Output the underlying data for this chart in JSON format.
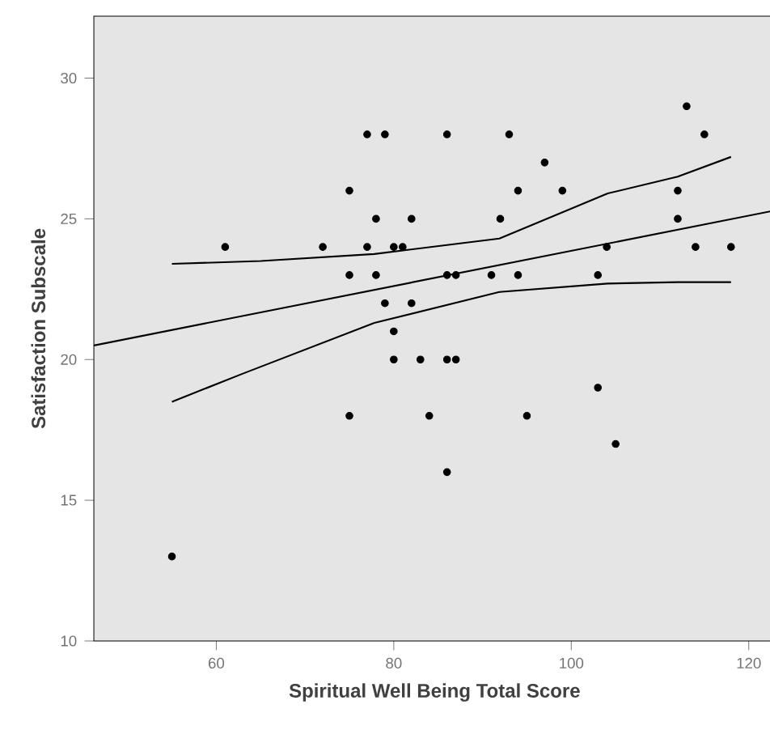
{
  "chart_data": {
    "type": "scatter",
    "xlabel": "Spiritual Well Being Total Score",
    "ylabel": "Satisfaction Subscale",
    "xlim": [
      46.2,
      123
    ],
    "ylim": [
      10,
      32.2
    ],
    "xticks": [
      60,
      80,
      100,
      120
    ],
    "yticks": [
      10,
      15,
      20,
      25,
      30
    ],
    "series": [
      {
        "marker": "circle",
        "color": "#000000",
        "x": [
          55,
          61,
          72,
          75,
          75,
          75,
          77,
          77,
          78,
          78,
          79,
          79,
          80,
          80,
          80,
          81,
          82,
          82,
          83,
          84,
          86,
          86,
          86,
          86,
          87,
          87,
          91,
          92,
          93,
          94,
          94,
          95,
          97,
          99,
          103,
          103,
          104,
          105,
          112,
          112,
          113,
          114,
          115,
          118
        ],
        "values": [
          13,
          24,
          24,
          26,
          23,
          18,
          28,
          24,
          25,
          23,
          28,
          22,
          24,
          21,
          20,
          24,
          25,
          22,
          20,
          18,
          28,
          23,
          20,
          16,
          23,
          20,
          23,
          25,
          28,
          26,
          23,
          18,
          27,
          26,
          23,
          19,
          24,
          17,
          26,
          25,
          29,
          24,
          28,
          24
        ]
      },
      {
        "type": "line",
        "marker": "none",
        "color": "#000000",
        "x": [
          46.2,
          123
        ],
        "values": [
          20.5,
          25.3
        ]
      },
      {
        "type": "line",
        "marker": "none",
        "color": "#000000",
        "x": [
          55,
          65,
          77.8,
          91.9,
          104.1,
          112,
          118
        ],
        "values": [
          23.4,
          23.5,
          23.75,
          24.3,
          25.9,
          26.5,
          27.2
        ]
      },
      {
        "type": "line",
        "marker": "none",
        "color": "#000000",
        "x": [
          55,
          63,
          77.8,
          91.9,
          104.1,
          112,
          118
        ],
        "values": [
          18.5,
          19.5,
          21.3,
          22.4,
          22.7,
          22.75,
          22.75
        ]
      }
    ]
  }
}
